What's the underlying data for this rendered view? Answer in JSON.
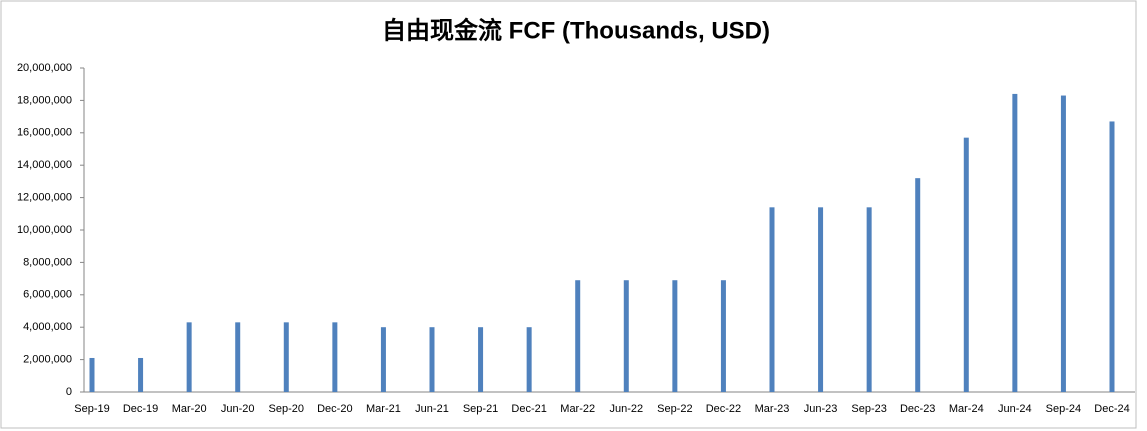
{
  "chart_data": {
    "type": "bar",
    "title": "自由现金流 FCF (Thousands, USD)",
    "categories": [
      "Sep-19",
      "Dec-19",
      "Mar-20",
      "Jun-20",
      "Sep-20",
      "Dec-20",
      "Mar-21",
      "Jun-21",
      "Sep-21",
      "Dec-21",
      "Mar-22",
      "Jun-22",
      "Sep-22",
      "Dec-22",
      "Mar-23",
      "Jun-23",
      "Sep-23",
      "Dec-23",
      "Mar-24",
      "Jun-24",
      "Sep-24",
      "Dec-24"
    ],
    "values": [
      2100000,
      2100000,
      4300000,
      4300000,
      4300000,
      4300000,
      4000000,
      4000000,
      4000000,
      4000000,
      6900000,
      6900000,
      6900000,
      6900000,
      11400000,
      11400000,
      11400000,
      13200000,
      15700000,
      18400000,
      18300000,
      16700000
    ],
    "color": "#4f81bd",
    "ylim": [
      0,
      20000000
    ],
    "yticks": [
      0,
      {
        "value": 2000000,
        "label": "2,000,000"
      },
      {
        "value": 4000000,
        "label": "4,000,000"
      },
      {
        "value": 6000000,
        "label": "6,000,000"
      },
      {
        "value": 8000000,
        "label": "8,000,000"
      },
      {
        "value": 10000000,
        "label": "10,000,000"
      },
      {
        "value": 12000000,
        "label": "12,000,000"
      },
      {
        "value": 14000000,
        "label": "14,000,000"
      },
      {
        "value": 16000000,
        "label": "16,000,000"
      },
      {
        "value": 18000000,
        "label": "18,000,000"
      },
      {
        "value": 20000000,
        "label": "20,000,000"
      }
    ],
    "grid": false
  }
}
